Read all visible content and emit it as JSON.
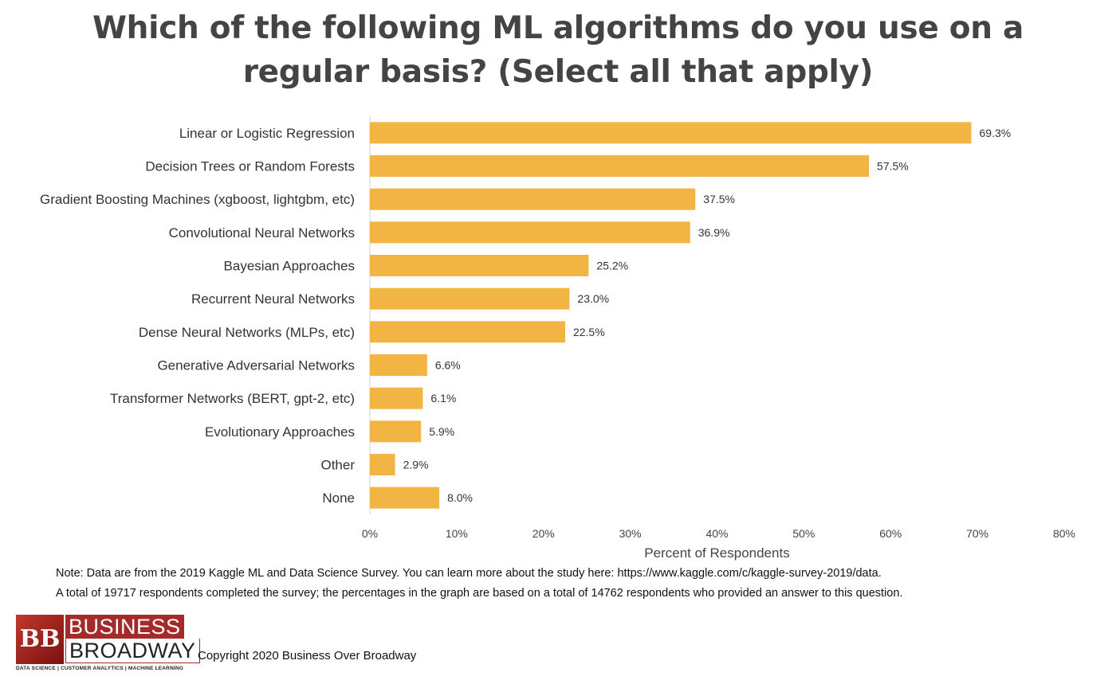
{
  "chart_data": {
    "type": "bar",
    "orientation": "horizontal",
    "title": "Which of the following ML algorithms do you use on a regular basis? (Select all that apply)",
    "categories": [
      "Linear or Logistic Regression",
      "Decision Trees or Random Forests",
      "Gradient Boosting Machines (xgboost, lightgbm, etc)",
      "Convolutional Neural Networks",
      "Bayesian Approaches",
      "Recurrent Neural Networks",
      "Dense Neural Networks (MLPs, etc)",
      "Generative Adversarial Networks",
      "Transformer Networks (BERT, gpt-2, etc)",
      "Evolutionary Approaches",
      "Other",
      "None"
    ],
    "values": [
      69.3,
      57.5,
      37.5,
      36.9,
      25.2,
      23.0,
      22.5,
      6.6,
      6.1,
      5.9,
      2.9,
      8.0
    ],
    "value_labels": [
      "69.3%",
      "57.5%",
      "37.5%",
      "36.9%",
      "25.2%",
      "23.0%",
      "22.5%",
      "6.6%",
      "6.1%",
      "5.9%",
      "2.9%",
      "8.0%"
    ],
    "xlabel": "Percent of Respondents",
    "ylabel": "",
    "xlim": [
      0,
      80
    ],
    "xticks": [
      "0%",
      "10%",
      "20%",
      "30%",
      "40%",
      "50%",
      "60%",
      "70%",
      "80%"
    ],
    "grid": false,
    "legend": "none",
    "bar_color": "#F2B544"
  },
  "note": {
    "line1": "Note: Data are from the 2019 Kaggle ML and Data Science Survey. You can learn more about the study here: https://www.kaggle.com/c/kaggle-survey-2019/data.",
    "line2": "A total of 19717 respondents completed the survey; the percentages in the graph are based on a total of 14762 respondents who provided an answer to this question."
  },
  "logo": {
    "mark": "BB",
    "line1": "BUSINESS",
    "line2": "BROADWAY",
    "tagline": "DATA SCIENCE | CUSTOMER ANALYTICS | MACHINE LEARNING"
  },
  "copyright": "Copyright 2020 Business Over Broadway"
}
